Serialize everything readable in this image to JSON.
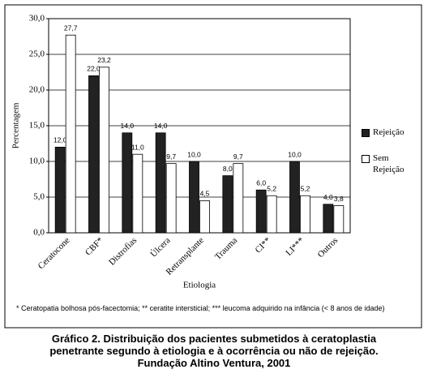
{
  "chart_data": {
    "type": "bar",
    "y_label": "Percentagem",
    "x_label": "Etiologia",
    "categories": [
      "Ceratocone",
      "CBF*",
      "Distrofias",
      "Úlcera",
      "Retransplante",
      "Trauma",
      "CI**",
      "LI***",
      "Outros"
    ],
    "series": [
      {
        "name": "Rejeição",
        "color": "#222222",
        "values": [
          12.0,
          22.0,
          14.0,
          14.0,
          10.0,
          8.0,
          6.0,
          10.0,
          4.0
        ],
        "value_labels": [
          "12,0",
          "22,0",
          "14,0",
          "14,0",
          "10,0",
          "8,0",
          "6,0",
          "10,0",
          "4,0"
        ]
      },
      {
        "name": "Sem Rejeição",
        "color": "#ffffff",
        "values": [
          27.7,
          23.2,
          11.0,
          9.7,
          4.5,
          9.7,
          5.2,
          5.2,
          3.8
        ],
        "value_labels": [
          "27,7",
          "23,2",
          "11,0",
          "9,7",
          "4,5",
          "9,7",
          "5,2",
          "5,2",
          "3,8"
        ]
      }
    ],
    "ylim": [
      0,
      30
    ],
    "yticks": [
      {
        "value": 0,
        "label": "0,0"
      },
      {
        "value": 5,
        "label": "5,0"
      },
      {
        "value": 10,
        "label": "10,0"
      },
      {
        "value": 15,
        "label": "15,0"
      },
      {
        "value": 20,
        "label": "20,0"
      },
      {
        "value": 25,
        "label": "25,0"
      },
      {
        "value": 30,
        "label": "30,0"
      }
    ],
    "grid": true,
    "footnote": "* Ceratopatia bolhosa pós-facectomia; ** ceratite intersticial; *** leucoma adquirido na infância (< 8 anos de idade)",
    "caption_lines": [
      "Gráfico 2. Distribuição dos pacientes submetidos à ceratoplastia",
      "penetrante segundo à etiologia e à ocorrência ou não de rejeição.",
      "Fundação Altino Ventura, 2001"
    ]
  }
}
